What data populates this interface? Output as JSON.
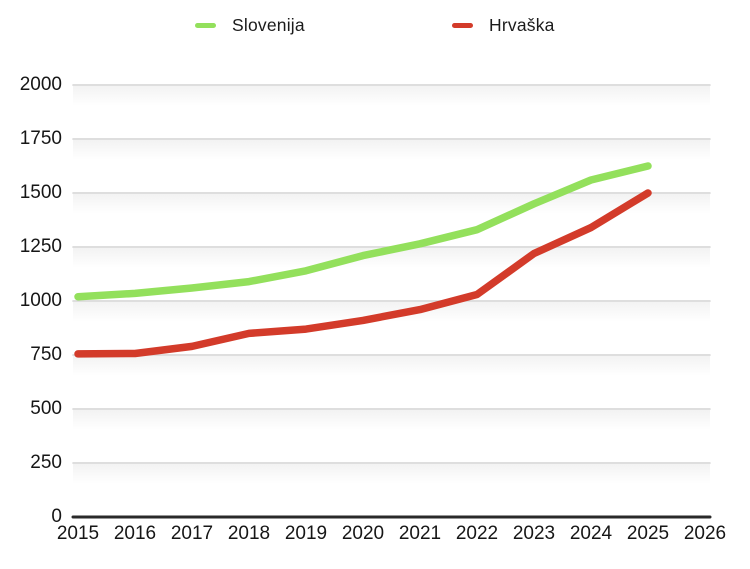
{
  "legend": {
    "items": [
      {
        "label": "Slovenija",
        "color": "#93E05C"
      },
      {
        "label": "Hrvaška",
        "color": "#D33B2A"
      }
    ]
  },
  "chart_data": {
    "type": "line",
    "title": "",
    "xlabel": "",
    "ylabel": "",
    "x": [
      2015,
      2016,
      2017,
      2018,
      2019,
      2020,
      2021,
      2022,
      2023,
      2024,
      2025
    ],
    "x_axis_tick_labels": [
      "2015",
      "2016",
      "2017",
      "2018",
      "2019",
      "2020",
      "2021",
      "2022",
      "2023",
      "2024",
      "2025",
      "2026"
    ],
    "y_ticks": [
      0,
      250,
      500,
      750,
      1000,
      1250,
      1500,
      1750,
      2000
    ],
    "ylim": [
      0,
      2000
    ],
    "xlim": [
      2015,
      2026
    ],
    "grid": true,
    "legend_position": "top",
    "series": [
      {
        "name": "Slovenija",
        "color": "#93E05C",
        "values": [
          1020,
          1035,
          1060,
          1090,
          1140,
          1210,
          1265,
          1330,
          1450,
          1560,
          1625
        ]
      },
      {
        "name": "Hrvaška",
        "color": "#D33B2A",
        "values": [
          755,
          757,
          790,
          850,
          870,
          910,
          960,
          1030,
          1220,
          1340,
          1500
        ]
      }
    ]
  },
  "style_colors": {
    "gridline": "#d4d4d4",
    "axis_line": "#2a2a2a",
    "tick_text": "#161616"
  }
}
